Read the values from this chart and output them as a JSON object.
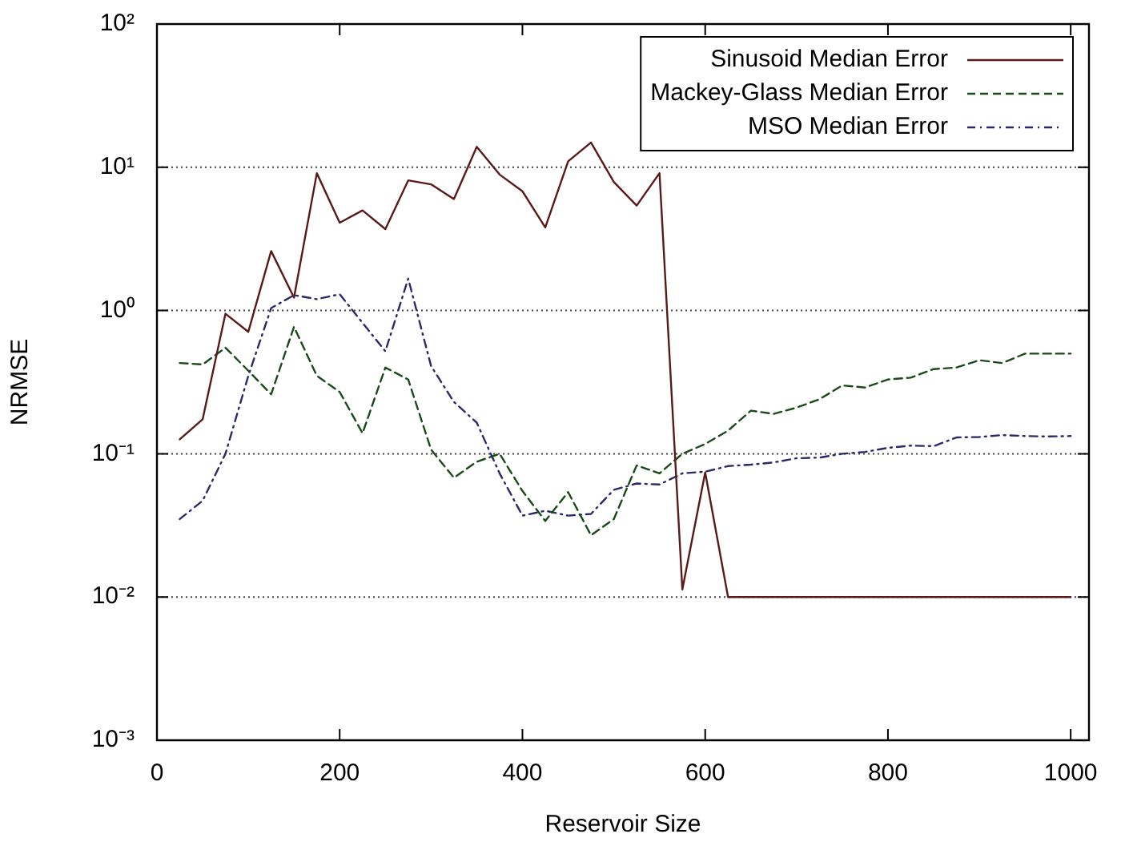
{
  "chart_data": {
    "type": "line",
    "xlabel": "Reservoir Size",
    "ylabel": "NRMSE",
    "log": "y",
    "grid": "y",
    "legend": "top right",
    "marker": "none",
    "xlim": [
      0,
      1020
    ],
    "xticks": [
      0,
      200,
      400,
      600,
      800,
      1000
    ],
    "ylim": [
      0.001,
      100
    ],
    "yticks": [
      {
        "value": 0.001,
        "label": "10⁻³"
      },
      {
        "value": 0.01,
        "label": "10⁻²"
      },
      {
        "value": 0.1,
        "label": "10⁻¹"
      },
      {
        "value": 1,
        "label": "10⁰"
      },
      {
        "value": 10,
        "label": "10¹"
      },
      {
        "value": 100,
        "label": "10²"
      }
    ],
    "x": [
      25,
      50,
      75,
      100,
      125,
      150,
      175,
      200,
      225,
      250,
      275,
      300,
      325,
      350,
      375,
      400,
      425,
      450,
      475,
      500,
      525,
      550,
      575,
      600,
      625,
      650,
      675,
      700,
      725,
      750,
      775,
      800,
      825,
      850,
      875,
      900,
      925,
      950,
      975,
      1000
    ],
    "series": [
      {
        "name": "Sinusoid Median Error",
        "color": "#5a1a1a",
        "line_style": "solid",
        "values": [
          0.126,
          0.174,
          0.95,
          0.71,
          2.6,
          1.23,
          9.1,
          4.1,
          5.0,
          3.7,
          8.1,
          7.6,
          6.0,
          13.9,
          8.9,
          6.8,
          3.8,
          11,
          14.9,
          7.9,
          5.4,
          9.1,
          0.0113,
          0.074,
          0.01,
          0.01,
          0.01,
          0.01,
          0.01,
          0.01,
          0.01,
          0.01,
          0.01,
          0.01,
          0.01,
          0.01,
          0.01,
          0.01,
          0.01,
          0.01
        ]
      },
      {
        "name": "Mackey-Glass Median Error",
        "color": "#1a4a1a",
        "line_style": "dashed",
        "values": [
          0.43,
          0.42,
          0.55,
          0.38,
          0.26,
          0.77,
          0.35,
          0.27,
          0.139,
          0.4,
          0.33,
          0.107,
          0.068,
          0.088,
          0.1,
          0.055,
          0.034,
          0.054,
          0.027,
          0.035,
          0.083,
          0.073,
          0.1,
          0.117,
          0.145,
          0.2,
          0.19,
          0.21,
          0.24,
          0.3,
          0.29,
          0.33,
          0.34,
          0.39,
          0.4,
          0.45,
          0.43,
          0.5,
          0.5,
          0.5
        ]
      },
      {
        "name": "MSO Median Error",
        "color": "#2a2a6a",
        "line_style": "dotted",
        "values": [
          0.035,
          0.047,
          0.1,
          0.35,
          1.04,
          1.28,
          1.2,
          1.3,
          0.82,
          0.52,
          1.67,
          0.41,
          0.23,
          0.165,
          0.073,
          0.037,
          0.04,
          0.037,
          0.038,
          0.056,
          0.062,
          0.061,
          0.073,
          0.075,
          0.082,
          0.084,
          0.087,
          0.093,
          0.094,
          0.1,
          0.103,
          0.11,
          0.114,
          0.113,
          0.13,
          0.131,
          0.135,
          0.133,
          0.132,
          0.133
        ]
      }
    ]
  }
}
